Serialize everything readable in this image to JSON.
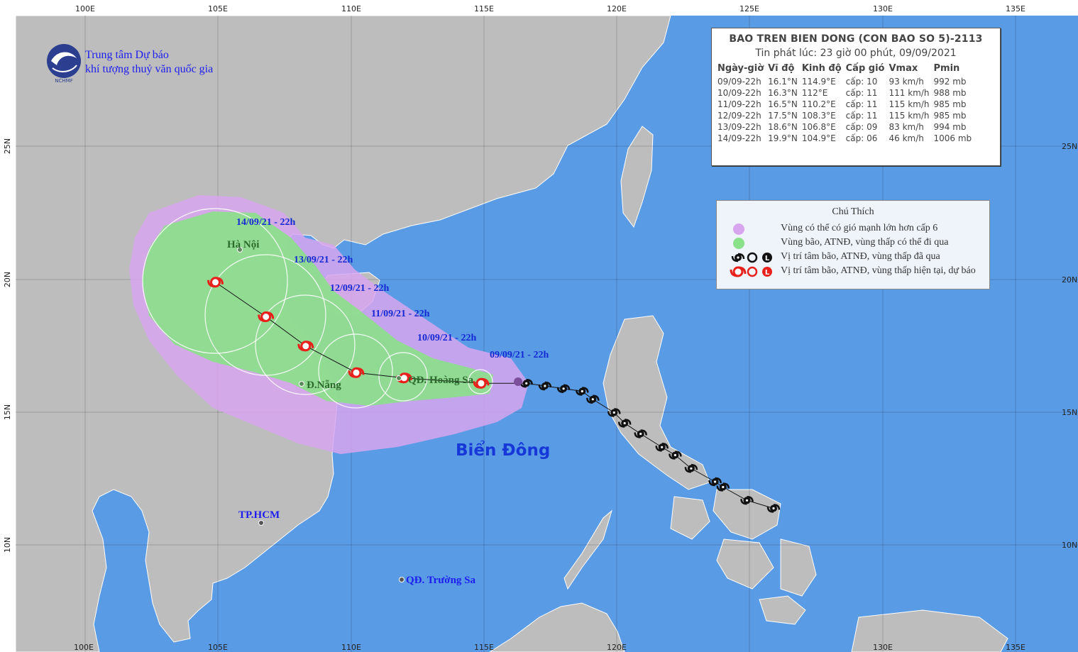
{
  "title": "BAO TREN BIEN DONG (CON BAO SO 5)-2113",
  "issued": "Tin phát lúc: 23 giờ 00 phút, 09/09/2021",
  "agency": {
    "line1": "Trung tâm Dự báo",
    "line2": "khí tượng thuỷ văn quốc gia",
    "logo_text": "NCHMF"
  },
  "table": {
    "headers": [
      "Ngày-giờ",
      "Vĩ độ",
      "Kinh độ",
      "Cấp gió",
      "Vmax",
      "Pmin"
    ],
    "rows": [
      [
        "09/09-22h",
        "16.1°N",
        "114.9°E",
        "cấp: 10",
        "93 km/h",
        "992 mb"
      ],
      [
        "10/09-22h",
        "16.3°N",
        "112°E",
        "cấp: 11",
        "111 km/h",
        "988 mb"
      ],
      [
        "11/09-22h",
        "16.5°N",
        "110.2°E",
        "cấp: 11",
        "115 km/h",
        "985 mb"
      ],
      [
        "12/09-22h",
        "17.5°N",
        "108.3°E",
        "cấp: 11",
        "115 km/h",
        "985 mb"
      ],
      [
        "13/09-22h",
        "18.6°N",
        "106.8°E",
        "cấp: 09",
        "83 km/h",
        "994 mb"
      ],
      [
        "14/09-22h",
        "19.9°N",
        "104.9°E",
        "cấp: 06",
        "46 km/h",
        "1006 mb"
      ]
    ]
  },
  "legend": {
    "title": "Chú Thích",
    "items": [
      "Vùng có thể có gió mạnh lớn hơn cấp 6",
      "Vùng bão, ATNĐ, vùng thấp có thể đi qua",
      "Vị trí tâm bão, ATNĐ, vùng thấp đã qua",
      "Vị trí tâm bão, ATNĐ, vùng thấp hiện tại, dự báo"
    ]
  },
  "axes": {
    "lon_ticks": [
      "100E",
      "105E",
      "110E",
      "115E",
      "120E",
      "125E",
      "130E",
      "135E"
    ],
    "lat_ticks": [
      "25N",
      "20N",
      "15N",
      "10N"
    ]
  },
  "places": {
    "hanoi": "Hà Nội",
    "danang": "Đ.Nẵng",
    "hoangsa": "QĐ. Hoàng Sa",
    "hcm": "TP.HCM",
    "truongsa": "QĐ. Trường Sa",
    "sea": "Biển Đông"
  },
  "track_labels": [
    "09/09/21 - 22h",
    "10/09/21 - 22h",
    "11/09/21 - 22h",
    "12/09/21 - 22h",
    "13/09/21 - 22h",
    "14/09/21 - 22h"
  ],
  "forecast_track": [
    {
      "lon": 114.9,
      "lat": 16.1
    },
    {
      "lon": 112.0,
      "lat": 16.3
    },
    {
      "lon": 110.2,
      "lat": 16.5
    },
    {
      "lon": 108.3,
      "lat": 17.5
    },
    {
      "lon": 106.8,
      "lat": 18.6
    },
    {
      "lon": 104.9,
      "lat": 19.9
    }
  ],
  "past_track": [
    {
      "lon": 125.9,
      "lat": 11.4
    },
    {
      "lon": 124.9,
      "lat": 11.7
    },
    {
      "lon": 124.0,
      "lat": 12.2
    },
    {
      "lon": 123.7,
      "lat": 12.4
    },
    {
      "lon": 122.8,
      "lat": 12.9
    },
    {
      "lon": 122.2,
      "lat": 13.4
    },
    {
      "lon": 121.7,
      "lat": 13.7
    },
    {
      "lon": 120.9,
      "lat": 14.2
    },
    {
      "lon": 120.3,
      "lat": 14.6
    },
    {
      "lon": 119.9,
      "lat": 15.0
    },
    {
      "lon": 119.1,
      "lat": 15.5
    },
    {
      "lon": 118.7,
      "lat": 15.8
    },
    {
      "lon": 118.0,
      "lat": 15.9
    },
    {
      "lon": 117.3,
      "lat": 16.0
    },
    {
      "lon": 116.6,
      "lat": 16.1
    }
  ],
  "colors": {
    "sea": "#5a9be6",
    "land": "#bdbdbd",
    "strong_wind_zone": "#d8a6ee",
    "storm_zone": "#8be08a",
    "current_marker": "#e8201c",
    "past_marker": "#111111"
  }
}
